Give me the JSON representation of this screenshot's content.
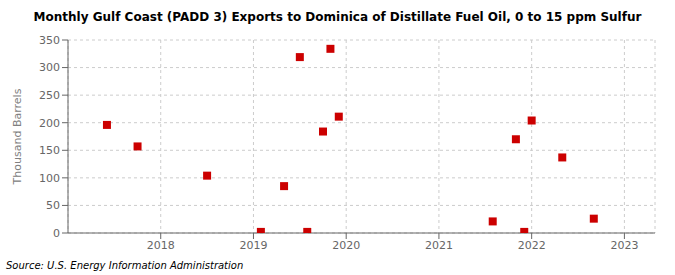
{
  "chart_data": {
    "type": "scatter",
    "title": "Monthly Gulf Coast (PADD 3) Exports to Dominica of Distillate Fuel Oil, 0 to 15 ppm Sulfur",
    "ylabel": "Thousand Barrels",
    "annotations": [
      "Source: U.S. Energy Information Administration"
    ],
    "x": [
      2017.42,
      2017.75,
      2018.5,
      2019.08,
      2019.33,
      2019.5,
      2019.58,
      2019.75,
      2019.83,
      2019.92,
      2021.58,
      2021.83,
      2021.92,
      2022.0,
      2022.33,
      2022.67
    ],
    "values": [
      196,
      157,
      104,
      2,
      85,
      319,
      2,
      184,
      334,
      211,
      21,
      170,
      2,
      204,
      137,
      26
    ],
    "color": "#cc0000",
    "marker": "square",
    "xlim": [
      2017.0,
      2023.33
    ],
    "xticks": [
      2018,
      2019,
      2020,
      2021,
      2022,
      2023
    ],
    "ylim": [
      0,
      350
    ],
    "yticks": [
      0,
      50,
      100,
      150,
      200,
      250,
      300,
      350
    ],
    "grid": true
  }
}
